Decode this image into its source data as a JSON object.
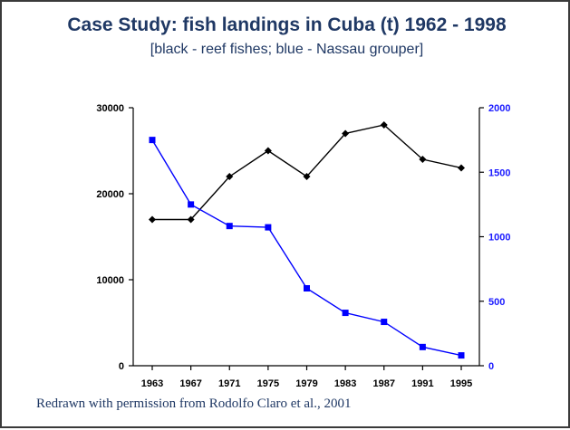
{
  "slide": {
    "title": "Case Study: fish landings in Cuba (t) 1962 - 1998",
    "subtitle": "[black - reef fishes; blue - Nassau grouper]",
    "footer": "Redrawn with permission from Rodolfo Claro et al., 2001"
  },
  "chart_data": {
    "type": "line",
    "title": "Case Study: fish landings in Cuba (t) 1962 - 1998",
    "x": [
      "1963",
      "1967",
      "1971",
      "1975",
      "1979",
      "1983",
      "1987",
      "1991",
      "1995"
    ],
    "y_left": {
      "ylim": [
        0,
        30000
      ],
      "ticks": [
        "0",
        "10000",
        "20000",
        "30000"
      ]
    },
    "y_right": {
      "ylim": [
        0,
        2000
      ],
      "ticks": [
        "0",
        "500",
        "1000",
        "1500",
        "2000"
      ]
    },
    "grid": false,
    "series": [
      {
        "axis": "left",
        "color": "#000000",
        "marker": "diamond",
        "values": [
          17000,
          17000,
          22000,
          25000,
          22000,
          27000,
          28000,
          24000,
          23000
        ]
      },
      {
        "axis": "right",
        "color": "#0000ff",
        "marker": "square",
        "values": [
          1750,
          1250,
          1083,
          1073,
          600,
          410,
          340,
          145,
          80
        ]
      }
    ]
  }
}
